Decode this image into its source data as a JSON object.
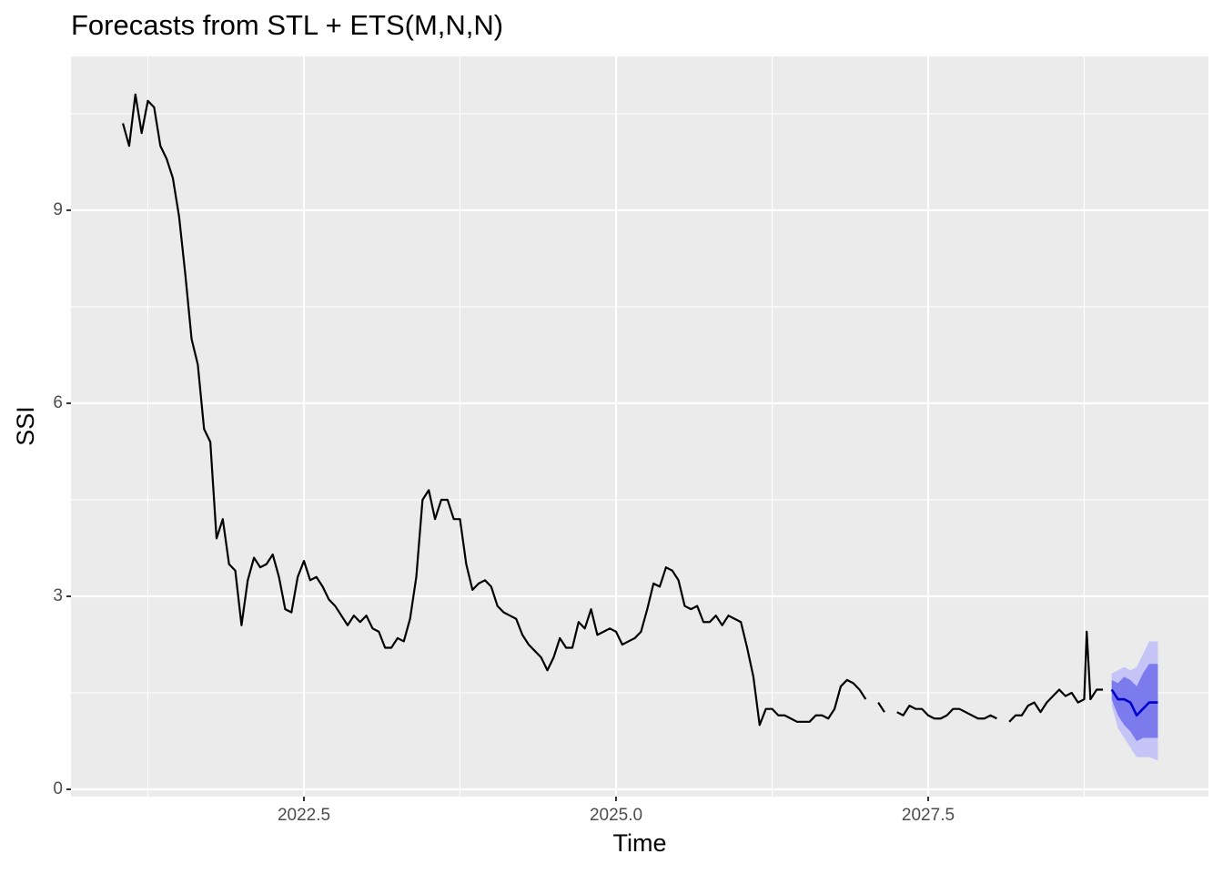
{
  "chart_data": {
    "type": "line",
    "title": "Forecasts from STL +  ETS(M,N,N)",
    "x_label": "Time",
    "y_label": "SSI",
    "xlim": [
      2020.634,
      2029.745
    ],
    "ylim": [
      -0.113,
      11.39
    ],
    "xticks": [
      2022.5,
      {
        "value": 2025,
        "label": "2025.0"
      },
      2027.5
    ],
    "yticks": [
      0,
      3,
      6,
      9
    ],
    "x_minor_breaks": [
      2021.25,
      2023.75,
      2026.25,
      2028.75
    ],
    "y_minor_breaks": [
      1.5,
      4.5,
      7.5,
      10.5
    ],
    "grid": true,
    "series": [
      {
        "color": "#000000",
        "x": [
          2021.05,
          2021.1,
          2021.15,
          2021.2,
          2021.25,
          2021.3,
          2021.35,
          2021.4,
          2021.45,
          2021.5,
          2021.55,
          2021.6,
          2021.65,
          2021.7,
          2021.75,
          2021.8,
          2021.85,
          2021.9,
          2021.95,
          2022.0,
          2022.05,
          2022.1,
          2022.15,
          2022.2,
          2022.25,
          2022.3,
          2022.35,
          2022.4,
          2022.45,
          2022.5,
          2022.55,
          2022.6,
          2022.65,
          2022.7,
          2022.75,
          2022.8,
          2022.85,
          2022.9,
          2022.95,
          2023.0,
          2023.05,
          2023.1,
          2023.15,
          2023.2,
          2023.25,
          2023.3,
          2023.35,
          2023.4,
          2023.45,
          2023.5,
          2023.55,
          2023.6,
          2023.65,
          2023.7,
          2023.75,
          2023.8,
          2023.85,
          2023.9,
          2023.95,
          2024.0,
          2024.05,
          2024.1,
          2024.15,
          2024.2,
          2024.25,
          2024.3,
          2024.35,
          2024.4,
          2024.45,
          2024.5,
          2024.55,
          2024.6,
          2024.65,
          2024.7,
          2024.75,
          2024.8,
          2024.85,
          2024.9,
          2024.95,
          2025.0,
          2025.05,
          2025.1,
          2025.15,
          2025.2,
          2025.25,
          2025.3,
          2025.35,
          2025.4,
          2025.45,
          2025.5,
          2025.55,
          2025.6,
          2025.65,
          2025.7,
          2025.75,
          2025.8,
          2025.85,
          2025.9,
          2025.95,
          2026.0,
          2026.05,
          2026.1,
          2026.15,
          2026.2,
          2026.25,
          2026.3,
          2026.35,
          2026.4,
          2026.45,
          2026.5,
          2026.55,
          2026.6,
          2026.65,
          2026.7,
          2026.75,
          2026.8,
          2026.85,
          2026.9,
          2026.95,
          2027.0,
          2027.05,
          2027.1,
          2027.15,
          2027.2,
          2027.25,
          2027.3,
          2027.35,
          2027.4,
          2027.45,
          2027.5,
          2027.55,
          2027.6,
          2027.65,
          2027.7,
          2027.75,
          2027.8,
          2027.85,
          2027.9,
          2027.95,
          2028.0,
          2028.05,
          2028.1,
          2028.15,
          2028.2,
          2028.25,
          2028.3,
          2028.35,
          2028.4,
          2028.45,
          2028.5,
          2028.55,
          2028.6,
          2028.65,
          2028.7,
          2028.75,
          2028.77,
          2028.8,
          2028.85,
          2028.9
        ],
        "values": [
          10.35,
          10.0,
          10.8,
          10.2,
          10.7,
          10.6,
          10.0,
          9.8,
          9.5,
          8.9,
          8.0,
          7.0,
          6.6,
          5.6,
          5.4,
          3.9,
          4.2,
          3.5,
          3.4,
          2.55,
          3.25,
          3.6,
          3.45,
          3.5,
          3.65,
          3.3,
          2.8,
          2.75,
          3.3,
          3.55,
          3.25,
          3.3,
          3.15,
          2.95,
          2.85,
          2.7,
          2.55,
          2.7,
          2.6,
          2.7,
          2.5,
          2.45,
          2.2,
          2.2,
          2.35,
          2.3,
          2.65,
          3.3,
          4.5,
          4.65,
          4.2,
          4.5,
          4.5,
          4.2,
          4.2,
          3.5,
          3.1,
          3.2,
          3.25,
          3.15,
          2.85,
          2.75,
          2.7,
          2.65,
          2.4,
          2.25,
          2.15,
          2.05,
          1.85,
          2.05,
          2.35,
          2.2,
          2.2,
          2.6,
          2.5,
          2.8,
          2.4,
          2.45,
          2.5,
          2.45,
          2.25,
          2.3,
          2.35,
          2.45,
          2.8,
          3.2,
          3.15,
          3.45,
          3.4,
          3.25,
          2.85,
          2.8,
          2.85,
          2.6,
          2.6,
          2.7,
          2.55,
          2.7,
          2.65,
          2.6,
          2.2,
          1.75,
          1.0,
          1.25,
          1.25,
          1.15,
          1.15,
          1.1,
          1.05,
          1.05,
          1.05,
          1.15,
          1.15,
          1.1,
          1.25,
          1.6,
          1.7,
          1.65,
          1.55,
          1.4,
          null,
          1.35,
          1.2,
          null,
          1.2,
          1.15,
          1.3,
          1.25,
          1.25,
          1.15,
          1.1,
          1.1,
          1.15,
          1.25,
          1.25,
          1.2,
          1.15,
          1.1,
          1.1,
          1.15,
          1.1,
          null,
          1.05,
          1.15,
          1.15,
          1.3,
          1.35,
          1.2,
          1.35,
          1.45,
          1.55,
          1.45,
          1.5,
          1.35,
          1.4,
          2.45,
          1.4,
          1.55,
          1.55
        ]
      },
      {
        "color": "#0000cc",
        "x": [
          2028.97,
          2029.02,
          2029.07,
          2029.12,
          2029.17,
          2029.22,
          2029.27,
          2029.34
        ],
        "values": [
          1.55,
          1.4,
          1.4,
          1.35,
          1.15,
          1.25,
          1.35,
          1.35
        ],
        "intervals": [
          {
            "color": "#c4c4f7",
            "lower": [
              1.3,
              0.95,
              0.8,
              0.65,
              0.5,
              0.5,
              0.5,
              0.45
            ],
            "upper": [
              1.8,
              1.85,
              1.9,
              1.85,
              1.9,
              2.1,
              2.3,
              2.3
            ]
          },
          {
            "color": "#7b7bee",
            "lower": [
              1.4,
              1.15,
              1.0,
              0.9,
              0.75,
              0.8,
              0.8,
              0.8
            ],
            "upper": [
              1.7,
              1.65,
              1.75,
              1.7,
              1.6,
              1.8,
              1.95,
              1.95
            ]
          }
        ]
      }
    ]
  }
}
